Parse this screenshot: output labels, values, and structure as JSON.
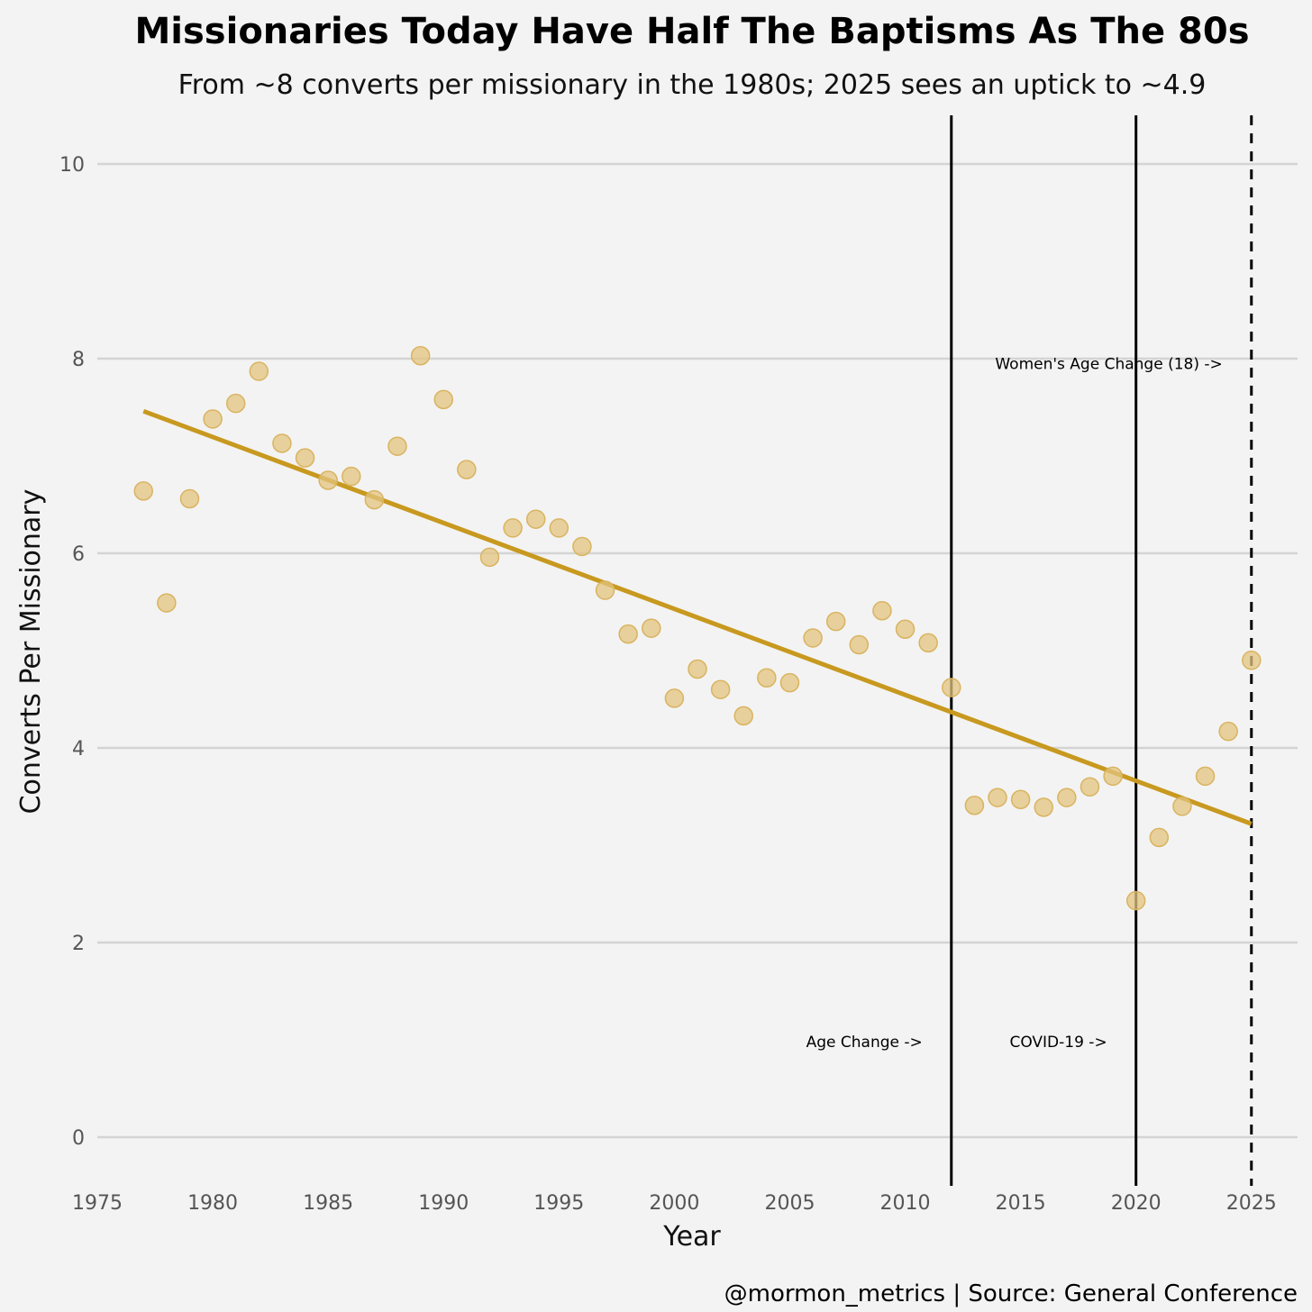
{
  "chart_data": {
    "type": "scatter",
    "title": "Missionaries Today Have Half The Baptisms As The 80s",
    "subtitle": "From ~8 converts per missionary in the 1980s; 2025 sees an uptick to ~4.9",
    "xlabel": "Year",
    "ylabel": "Converts Per Missionary",
    "caption": "@mormon_metrics | Source: General Conference",
    "xlim": [
      1975,
      2027
    ],
    "ylim": [
      -0.5,
      10.5
    ],
    "x_ticks": [
      1975,
      1980,
      1985,
      1990,
      1995,
      2000,
      2005,
      2010,
      2015,
      2020,
      2025
    ],
    "y_ticks": [
      0,
      2,
      4,
      6,
      8,
      10
    ],
    "grid": true,
    "colors": {
      "point": "#e3c47f",
      "trend": "#c8991f",
      "vline": "#000000",
      "grid": "#d4d4d4"
    },
    "x": [
      1977,
      1978,
      1979,
      1980,
      1981,
      1982,
      1983,
      1984,
      1985,
      1986,
      1987,
      1988,
      1989,
      1990,
      1991,
      1992,
      1993,
      1994,
      1995,
      1996,
      1997,
      1998,
      1999,
      2000,
      2001,
      2002,
      2003,
      2004,
      2005,
      2006,
      2007,
      2008,
      2009,
      2010,
      2011,
      2012,
      2013,
      2014,
      2015,
      2016,
      2017,
      2018,
      2019,
      2020,
      2021,
      2022,
      2023,
      2024,
      2025
    ],
    "y": [
      6.64,
      5.49,
      6.56,
      7.38,
      7.54,
      7.87,
      7.13,
      6.98,
      6.75,
      6.79,
      6.55,
      7.1,
      8.03,
      7.58,
      6.86,
      5.96,
      6.26,
      6.35,
      6.26,
      6.07,
      5.62,
      5.17,
      5.23,
      4.51,
      4.81,
      4.6,
      4.33,
      4.72,
      4.67,
      5.13,
      5.3,
      5.06,
      5.41,
      5.22,
      5.08,
      4.62,
      3.41,
      3.49,
      3.47,
      3.39,
      3.49,
      3.6,
      3.71,
      2.43,
      3.08,
      3.4,
      3.71,
      4.17,
      4.9
    ],
    "trend": {
      "x": [
        1977,
        2025
      ],
      "y": [
        7.46,
        3.22
      ]
    },
    "events": [
      {
        "x": 2012,
        "style": "solid",
        "label": "Age Change ->",
        "label_y": 0.98,
        "anchor": "end"
      },
      {
        "x": 2020,
        "style": "solid",
        "label": "COVID-19 ->",
        "label_y": 0.98,
        "anchor": "end"
      },
      {
        "x": 2025,
        "style": "dashed",
        "label": "Women's Age Change (18) ->",
        "label_y": 7.95,
        "anchor": "end"
      }
    ]
  }
}
